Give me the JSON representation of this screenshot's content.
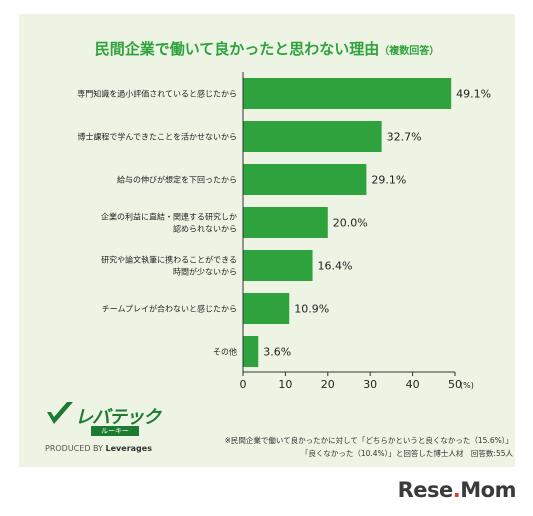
{
  "title": "民間企業で働いて良かったと思わない理由",
  "title_note": "（複数回答）",
  "chart_data": {
    "type": "bar",
    "orientation": "horizontal",
    "categories": [
      "専門知識を過小評価されていると感じたから",
      "博士課程で学んできたことを活かせないから",
      "給与の伸びが想定を下回ったから",
      "企業の利益に直結・関連する研究しか\n認められないから",
      "研究や論文執筆に携わることができる\n時間が少ないから",
      "チームプレイが合わないと感じたから",
      "その他"
    ],
    "values": [
      49.1,
      32.7,
      29.1,
      20.0,
      16.4,
      10.9,
      3.6
    ],
    "value_labels": [
      "49.1%",
      "32.7%",
      "29.1%",
      "20.0%",
      "16.4%",
      "10.9%",
      "3.6%"
    ],
    "xlim": [
      0,
      50
    ],
    "xticks": [
      0,
      10,
      20,
      30,
      40,
      50
    ],
    "x_unit": "(%)",
    "grid": false,
    "bar_color": "#2ea33d"
  },
  "logo": {
    "wordmark": "レバテック",
    "sub": "ルーキー",
    "produced_by": "PRODUCED BY",
    "company": "Leverages"
  },
  "notes": {
    "line1": "※民間企業で働いて良かったかに対して「どちらかというと良くなかった（15.6%）」",
    "line2": "「良くなかった（10.4%）」と回答した博士人材　回答数:55人"
  },
  "brand": {
    "name_a": "Rese",
    "name_b": "Mom",
    "dot": "."
  },
  "colors": {
    "background": "#edf4e4",
    "accent": "#2ea33d",
    "logo": "#1d7a32"
  }
}
